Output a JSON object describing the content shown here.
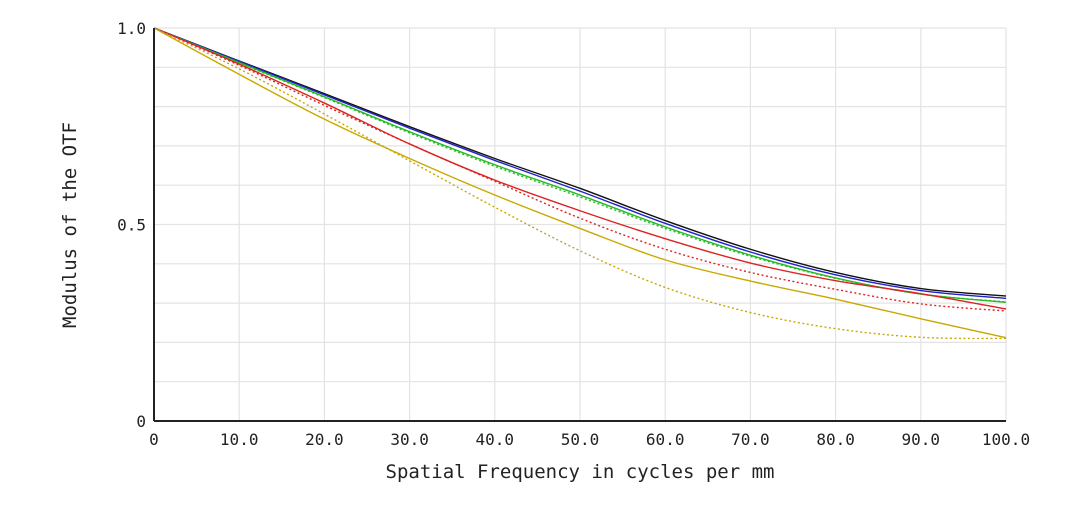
{
  "chart_data": {
    "type": "line",
    "title": "",
    "xlabel": "Spatial Frequency in cycles per mm",
    "ylabel": "Modulus of the OTF",
    "xlim": [
      0,
      100
    ],
    "ylim": [
      0,
      1
    ],
    "grid": true,
    "x_ticks": [
      0,
      10,
      20,
      30,
      40,
      50,
      60,
      70,
      80,
      90,
      100
    ],
    "x_tick_labels": [
      "0",
      "10.0",
      "20.0",
      "30.0",
      "40.0",
      "50.0",
      "60.0",
      "70.0",
      "80.0",
      "90.0",
      "100.0"
    ],
    "y_ticks": [
      0,
      0.5,
      1.0
    ],
    "y_tick_labels": [
      "0",
      "0.5",
      "1.0"
    ],
    "x": [
      0,
      10,
      20,
      30,
      40,
      50,
      60,
      70,
      80,
      90,
      100
    ],
    "series": [
      {
        "name": "black-solid",
        "color": "#111111",
        "style": "solid",
        "values": [
          1.0,
          0.916,
          0.833,
          0.749,
          0.668,
          0.592,
          0.51,
          0.437,
          0.378,
          0.337,
          0.318
        ]
      },
      {
        "name": "blue-solid",
        "color": "#2222cc",
        "style": "solid",
        "values": [
          1.0,
          0.915,
          0.83,
          0.745,
          0.663,
          0.585,
          0.503,
          0.43,
          0.372,
          0.332,
          0.312
        ]
      },
      {
        "name": "green-solid",
        "color": "#22bb22",
        "style": "solid",
        "values": [
          1.0,
          0.912,
          0.825,
          0.736,
          0.652,
          0.575,
          0.494,
          0.422,
          0.364,
          0.323,
          0.302
        ]
      },
      {
        "name": "green-dotted",
        "color": "#22bb22",
        "style": "dotted",
        "values": [
          1.0,
          0.911,
          0.823,
          0.733,
          0.648,
          0.57,
          0.49,
          0.419,
          0.363,
          0.323,
          0.303
        ]
      },
      {
        "name": "red-solid",
        "color": "#dd2222",
        "style": "solid",
        "values": [
          1.0,
          0.908,
          0.809,
          0.705,
          0.613,
          0.535,
          0.464,
          0.402,
          0.357,
          0.324,
          0.285
        ]
      },
      {
        "name": "red-dotted",
        "color": "#dd2222",
        "style": "dotted",
        "values": [
          1.0,
          0.905,
          0.803,
          0.705,
          0.61,
          0.516,
          0.437,
          0.378,
          0.335,
          0.298,
          0.28
        ]
      },
      {
        "name": "yellow-solid",
        "color": "#c8a800",
        "style": "solid",
        "values": [
          1.0,
          0.882,
          0.768,
          0.668,
          0.575,
          0.49,
          0.41,
          0.356,
          0.31,
          0.26,
          0.212
        ]
      },
      {
        "name": "yellow-dotted",
        "color": "#c8a800",
        "style": "dotted",
        "values": [
          1.0,
          0.896,
          0.781,
          0.662,
          0.544,
          0.433,
          0.34,
          0.276,
          0.235,
          0.213,
          0.21
        ]
      }
    ]
  }
}
